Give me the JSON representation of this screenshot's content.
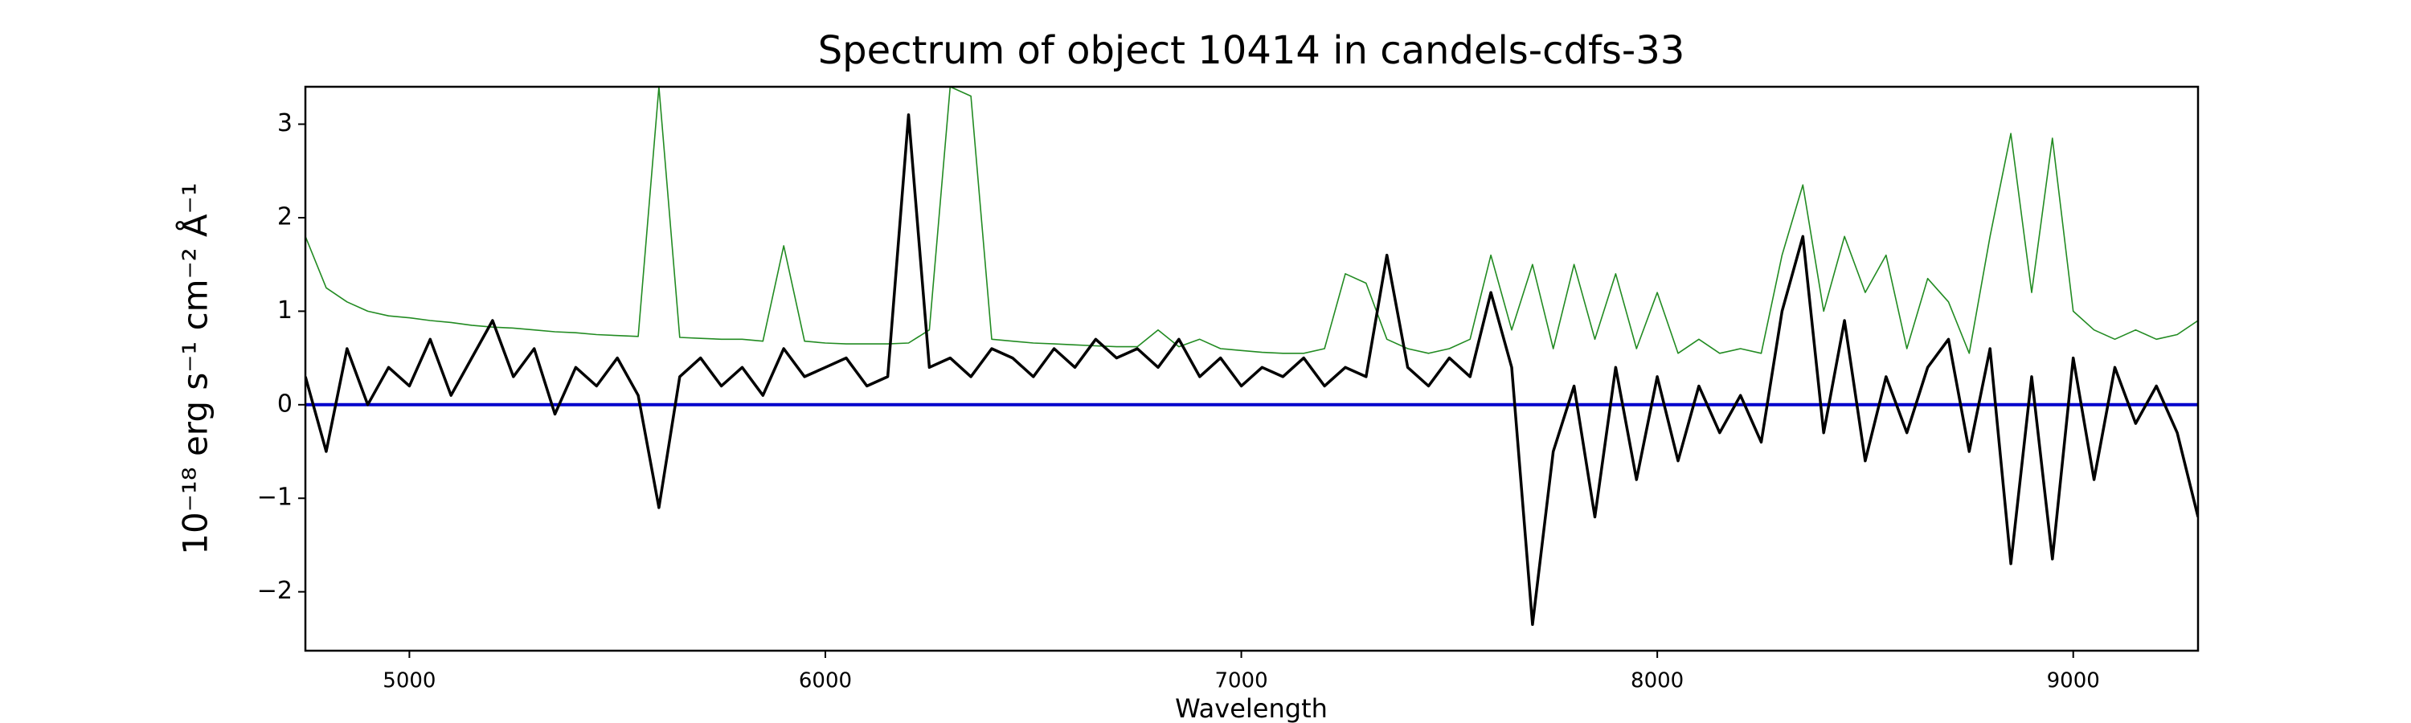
{
  "chart_data": {
    "type": "line",
    "title": "Spectrum of object 10414 in candels-cdfs-33",
    "xlabel": "Wavelength",
    "ylabel": "10⁻¹⁸ erg s⁻¹ cm⁻² Å⁻¹",
    "xlim": [
      4750,
      9300
    ],
    "ylim": [
      -2.63,
      3.4
    ],
    "xticks": [
      5000,
      6000,
      7000,
      8000,
      9000
    ],
    "yticks": [
      {
        "value": -2,
        "label": "−2"
      },
      {
        "value": -1,
        "label": "−1"
      },
      0,
      1,
      2,
      3
    ],
    "x": [
      4750,
      4800,
      4850,
      4900,
      4950,
      5000,
      5050,
      5100,
      5150,
      5200,
      5250,
      5300,
      5350,
      5400,
      5450,
      5500,
      5550,
      5600,
      5650,
      5700,
      5750,
      5800,
      5850,
      5900,
      5950,
      6000,
      6050,
      6100,
      6150,
      6200,
      6250,
      6300,
      6350,
      6400,
      6450,
      6500,
      6550,
      6600,
      6650,
      6700,
      6750,
      6800,
      6850,
      6900,
      6950,
      7000,
      7050,
      7100,
      7150,
      7200,
      7250,
      7300,
      7350,
      7400,
      7450,
      7500,
      7550,
      7600,
      7650,
      7700,
      7750,
      7800,
      7850,
      7900,
      7950,
      8000,
      8050,
      8100,
      8150,
      8200,
      8250,
      8300,
      8350,
      8400,
      8450,
      8500,
      8550,
      8600,
      8650,
      8700,
      8750,
      8800,
      8850,
      8900,
      8950,
      9000,
      9050,
      9100,
      9150,
      9200,
      9250,
      9300
    ],
    "series": [
      {
        "color": "#228b22",
        "width": 1.6,
        "values": [
          1.8,
          1.25,
          1.1,
          1.0,
          0.95,
          0.93,
          0.9,
          0.88,
          0.85,
          0.83,
          0.82,
          0.8,
          0.78,
          0.77,
          0.75,
          0.74,
          0.73,
          3.4,
          0.72,
          0.71,
          0.7,
          0.7,
          0.68,
          1.7,
          0.68,
          0.66,
          0.65,
          0.65,
          0.65,
          0.66,
          0.8,
          3.4,
          3.3,
          0.7,
          0.68,
          0.66,
          0.65,
          0.64,
          0.63,
          0.62,
          0.62,
          0.8,
          0.62,
          0.7,
          0.6,
          0.58,
          0.56,
          0.55,
          0.55,
          0.6,
          1.4,
          1.3,
          0.7,
          0.6,
          0.55,
          0.6,
          0.7,
          1.6,
          0.8,
          1.5,
          0.6,
          1.5,
          0.7,
          1.4,
          0.6,
          1.2,
          0.55,
          0.7,
          0.55,
          0.6,
          0.55,
          1.6,
          2.35,
          1.0,
          1.8,
          1.2,
          1.6,
          0.6,
          1.35,
          1.1,
          0.55,
          1.8,
          2.9,
          1.2,
          2.85,
          1.0,
          0.8,
          0.7,
          0.8,
          0.7,
          0.75,
          0.9
        ]
      },
      {
        "color": "#0000cc",
        "width": 4,
        "values": [
          0,
          0,
          0,
          0,
          0,
          0,
          0,
          0,
          0,
          0,
          0,
          0,
          0,
          0,
          0,
          0,
          0,
          0,
          0,
          0,
          0,
          0,
          0,
          0,
          0,
          0,
          0,
          0,
          0,
          0,
          0,
          0,
          0,
          0,
          0,
          0,
          0,
          0,
          0,
          0,
          0,
          0,
          0,
          0,
          0,
          0,
          0,
          0,
          0,
          0,
          0,
          0,
          0,
          0,
          0,
          0,
          0,
          0,
          0,
          0,
          0,
          0,
          0,
          0,
          0,
          0,
          0,
          0,
          0,
          0,
          0,
          0,
          0,
          0,
          0,
          0,
          0,
          0,
          0,
          0,
          0,
          0,
          0,
          0,
          0,
          0,
          0,
          0,
          0,
          0,
          0,
          0
        ]
      },
      {
        "color": "#000000",
        "width": 3.5,
        "values": [
          0.3,
          -0.5,
          0.6,
          0.0,
          0.4,
          0.2,
          0.7,
          0.1,
          0.5,
          0.9,
          0.3,
          0.6,
          -0.1,
          0.4,
          0.2,
          0.5,
          0.1,
          -1.1,
          0.3,
          0.5,
          0.2,
          0.4,
          0.1,
          0.6,
          0.3,
          0.4,
          0.5,
          0.2,
          0.3,
          3.1,
          0.4,
          0.5,
          0.3,
          0.6,
          0.5,
          0.3,
          0.6,
          0.4,
          0.7,
          0.5,
          0.6,
          0.4,
          0.7,
          0.3,
          0.5,
          0.2,
          0.4,
          0.3,
          0.5,
          0.2,
          0.4,
          0.3,
          1.6,
          0.4,
          0.2,
          0.5,
          0.3,
          1.2,
          0.4,
          -2.35,
          -0.5,
          0.2,
          -1.2,
          0.4,
          -0.8,
          0.3,
          -0.6,
          0.2,
          -0.3,
          0.1,
          -0.4,
          1.0,
          1.8,
          -0.3,
          0.9,
          -0.6,
          0.3,
          -0.3,
          0.4,
          0.7,
          -0.5,
          0.6,
          -1.7,
          0.3,
          -1.65,
          0.5,
          -0.8,
          0.4,
          -0.2,
          0.2,
          -0.3,
          -1.2
        ]
      }
    ]
  }
}
